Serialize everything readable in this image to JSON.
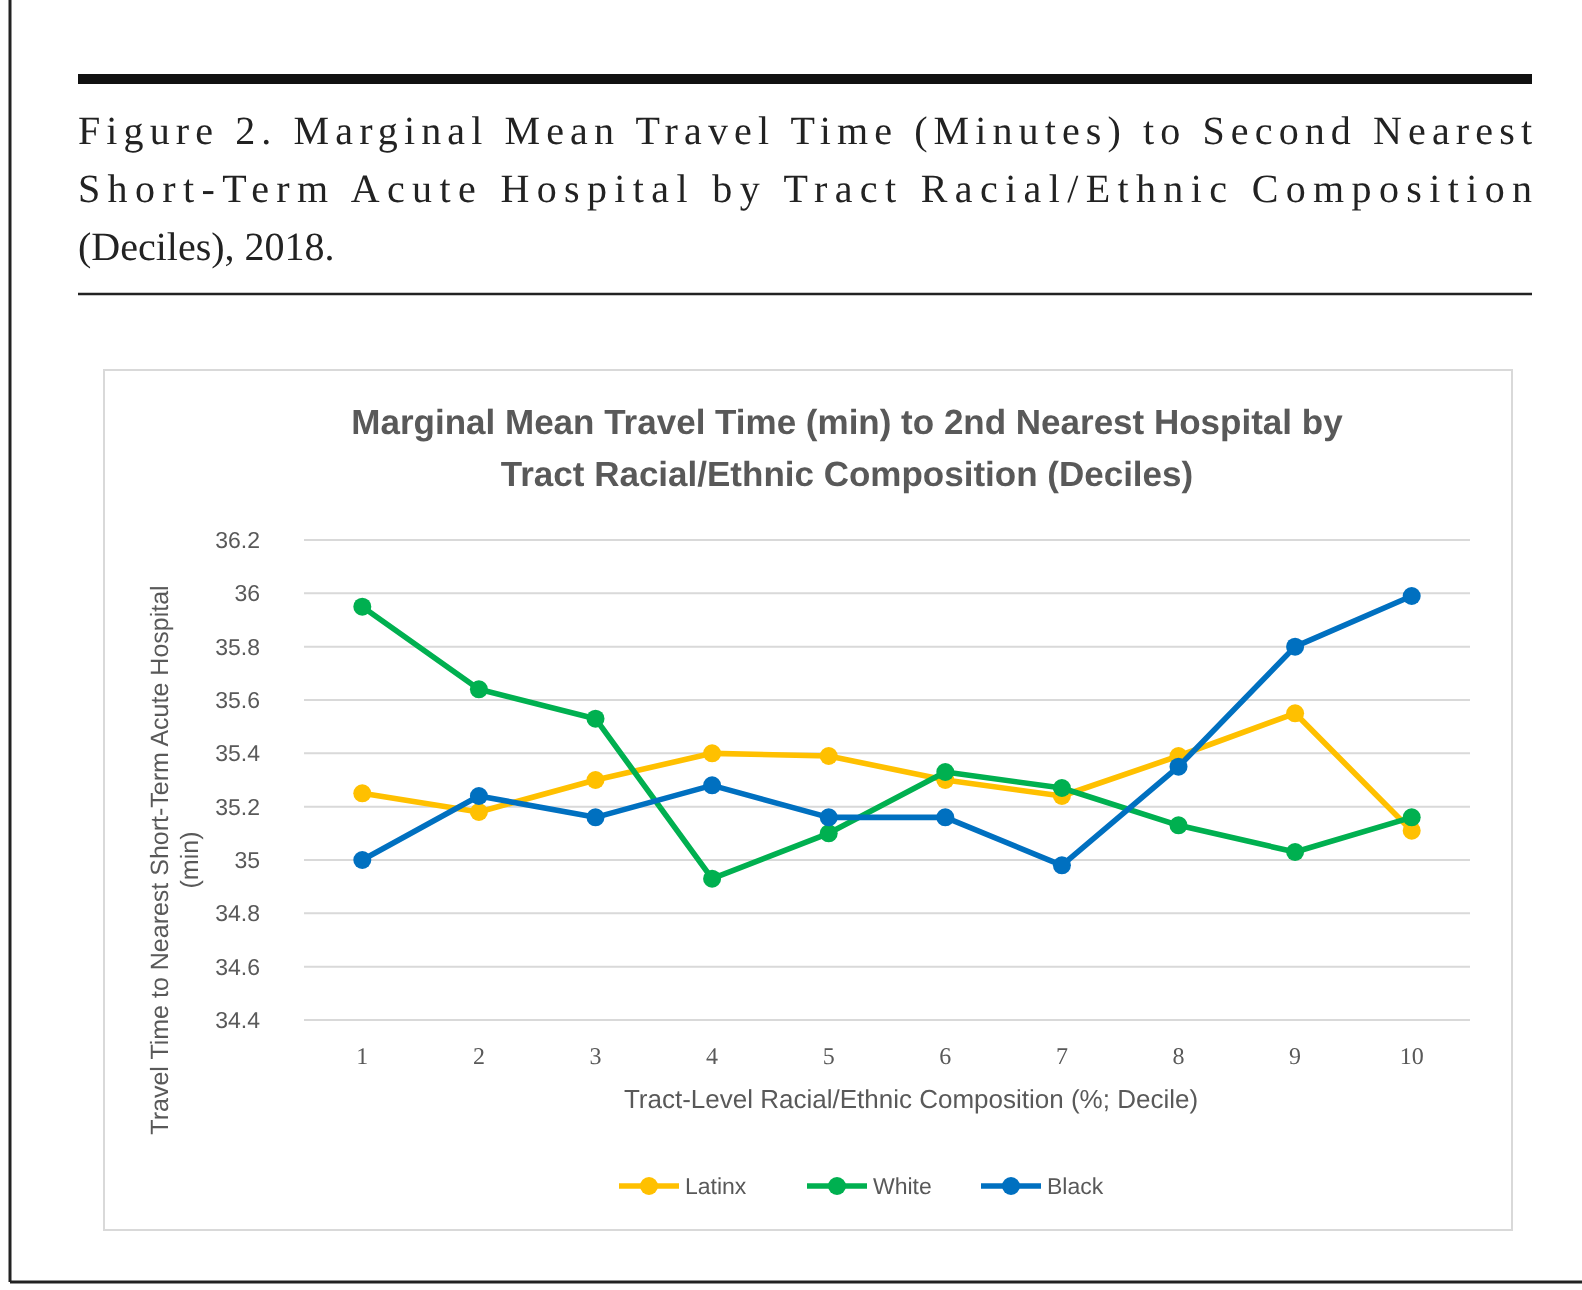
{
  "chart_data": {
    "type": "line",
    "title": "Marginal Mean Travel Time (min) to 2nd Nearest Hospital by Tract Racial/Ethnic Composition (Deciles)",
    "annotations": [
      "Figure 2. Marginal Mean Travel Time (Minutes) to Second Nearest Short-Term Acute Hospital by Tract Racial/Ethnic Composition (Deciles), 2018."
    ],
    "xlabel": "Tract-Level Racial/Ethnic Composition (%; Decile)",
    "ylabel": "Travel Time to Nearest Short-Term Acute Hospital (min)",
    "categories": [
      "1",
      "2",
      "3",
      "4",
      "5",
      "6",
      "7",
      "8",
      "9",
      "10"
    ],
    "series": [
      {
        "name": "Latinx",
        "color": "#ffc000",
        "values": [
          35.25,
          35.18,
          35.3,
          35.4,
          35.39,
          35.3,
          35.24,
          35.39,
          35.55,
          35.11
        ]
      },
      {
        "name": "White",
        "color": "#00b050",
        "values": [
          35.95,
          35.64,
          35.53,
          34.93,
          35.1,
          35.33,
          35.27,
          35.13,
          35.03,
          35.16
        ]
      },
      {
        "name": "Black",
        "color": "#0070c0",
        "values": [
          35.0,
          35.24,
          35.16,
          35.28,
          35.16,
          35.16,
          34.98,
          35.35,
          35.8,
          35.99
        ]
      }
    ],
    "ylim": [
      34.4,
      36.2
    ],
    "yticks": [
      34.4,
      34.6,
      34.8,
      35,
      35.2,
      35.4,
      35.6,
      35.8,
      36,
      36.2
    ],
    "grid": "y",
    "legend": "bottom",
    "marker": "circle",
    "line_style": "solid"
  }
}
